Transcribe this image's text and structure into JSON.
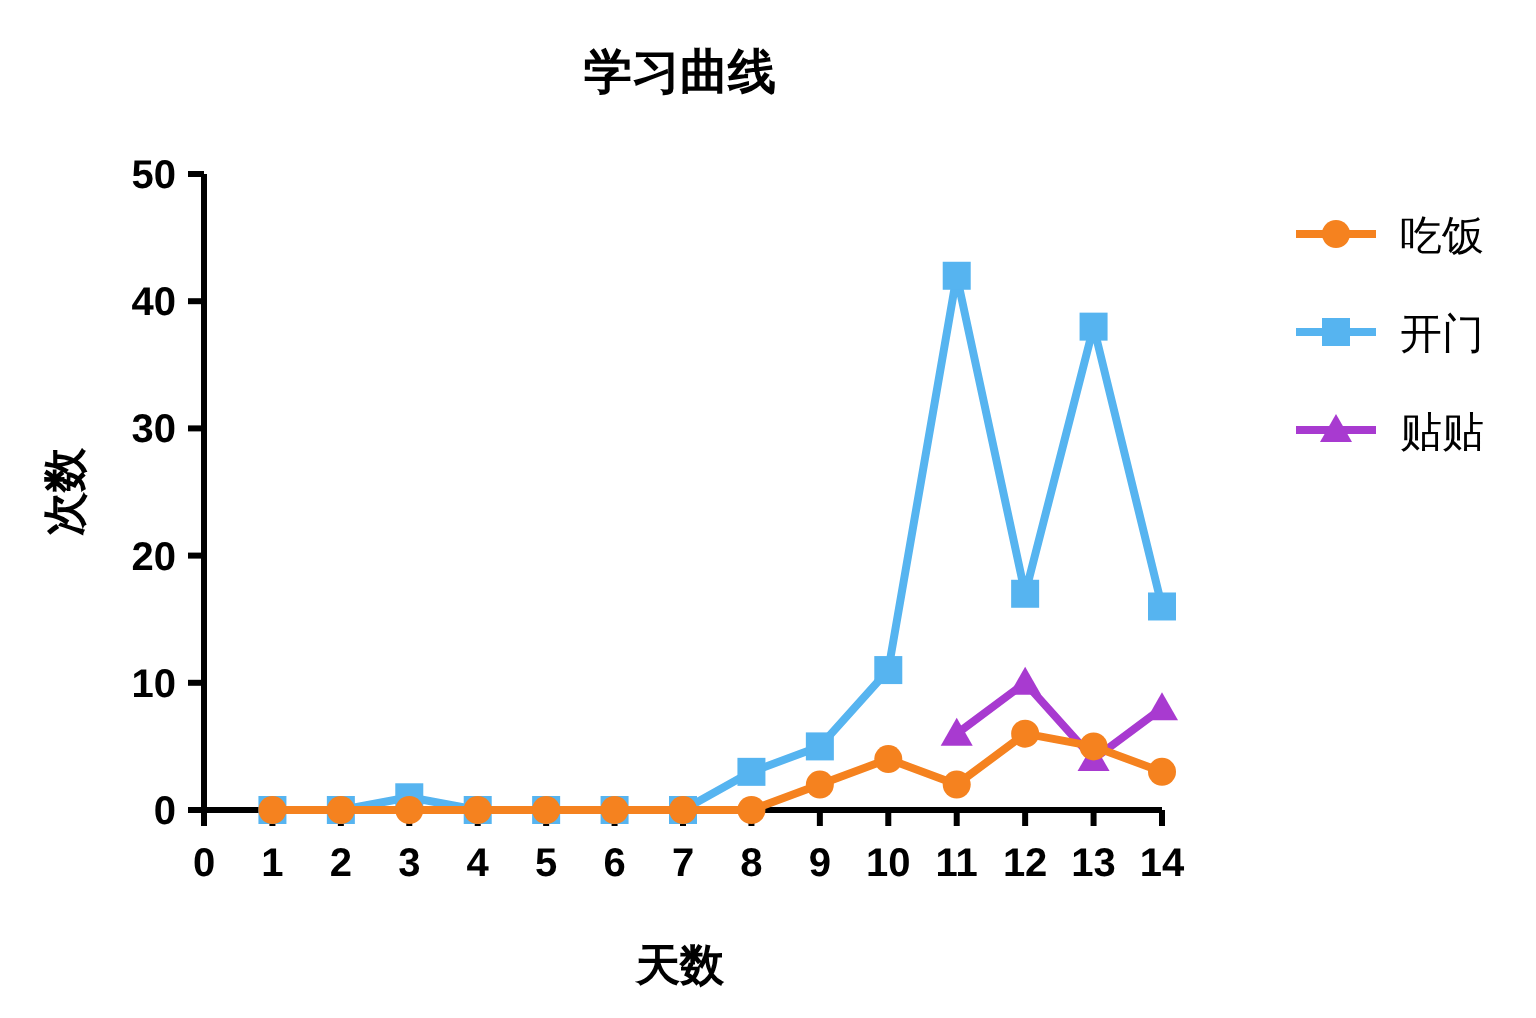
{
  "chart_data": {
    "type": "line",
    "title": "学习曲线",
    "xlabel": "天数",
    "ylabel": "次数",
    "x": [
      1,
      2,
      3,
      4,
      5,
      6,
      7,
      8,
      9,
      10,
      11,
      12,
      13,
      14
    ],
    "series": [
      {
        "name": "吃饭",
        "color": "#f5821f",
        "marker": "circle",
        "values": [
          0,
          0,
          0,
          0,
          0,
          0,
          0,
          0,
          2,
          4,
          2,
          6,
          5,
          3
        ]
      },
      {
        "name": "开门",
        "color": "#56b4f0",
        "marker": "square",
        "values": [
          0,
          0,
          1,
          0,
          0,
          0,
          0,
          3,
          5,
          11,
          42,
          17,
          38,
          16
        ]
      },
      {
        "name": "贴贴",
        "color": "#a83ad0",
        "marker": "triangle",
        "x": [
          11,
          12,
          13,
          14
        ],
        "values": [
          6,
          10,
          4,
          8
        ]
      }
    ],
    "xlim": [
      0,
      14
    ],
    "xticks": [
      0,
      1,
      2,
      3,
      4,
      5,
      6,
      7,
      8,
      9,
      10,
      11,
      12,
      13,
      14
    ],
    "ylim": [
      0,
      50
    ],
    "yticks": [
      0,
      10,
      20,
      30,
      40,
      50
    ],
    "grid": false,
    "legend": "right"
  }
}
